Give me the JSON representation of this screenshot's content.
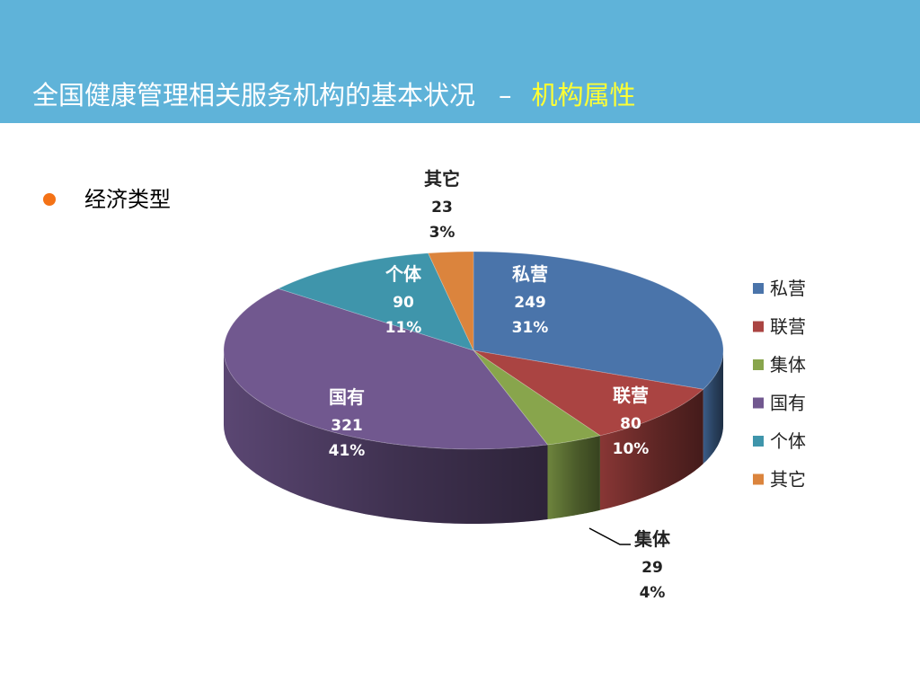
{
  "slide": {
    "title": "全国健康管理相关服务机构的基本状况",
    "title_sep": "–",
    "title_highlight": "机构属性",
    "bullet": "经济类型"
  },
  "colors": {
    "header": "#5fb3d9",
    "highlight": "#ffff33",
    "bullet": "#f47216"
  },
  "chart_data": {
    "type": "pie",
    "style": "3d",
    "legend_position": "right",
    "series": [
      {
        "name": "私营",
        "value": 249,
        "percent": "31%",
        "color": "#4a74aa"
      },
      {
        "name": "联营",
        "value": 80,
        "percent": "10%",
        "color": "#aa4442"
      },
      {
        "name": "集体",
        "value": 29,
        "percent": "4%",
        "color": "#88a54c"
      },
      {
        "name": "国有",
        "value": 321,
        "percent": "41%",
        "color": "#71588f"
      },
      {
        "name": "个体",
        "value": 90,
        "percent": "11%",
        "color": "#3f95ab"
      },
      {
        "name": "其它",
        "value": 23,
        "percent": "3%",
        "color": "#db843d"
      }
    ]
  }
}
